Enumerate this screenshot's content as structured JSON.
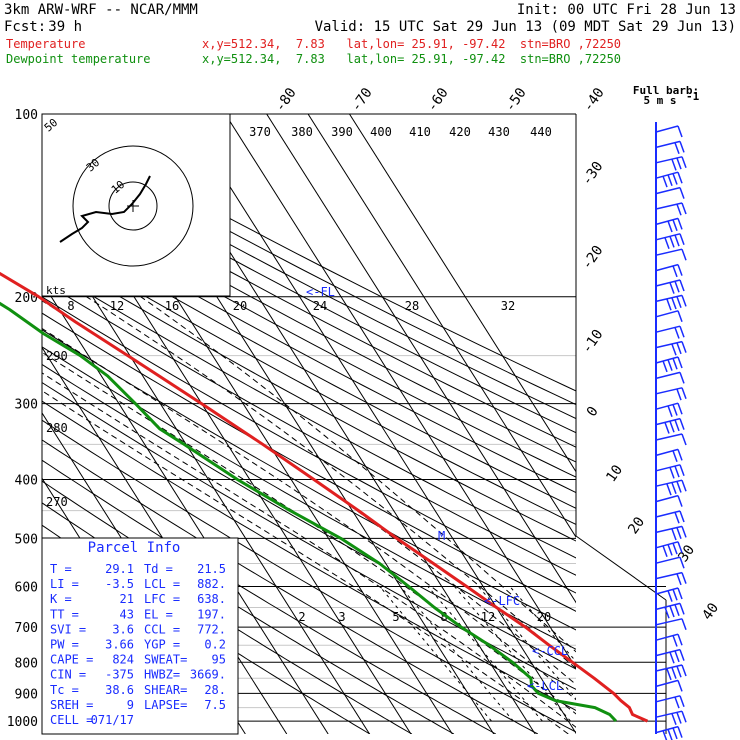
{
  "header": {
    "model": "3km ARW-WRF -- NCAR/MMM",
    "init": "Init: 00 UTC Fri 28 Jun 13",
    "fcst_label": "Fcst:",
    "fcst_value": "39 h",
    "valid": "Valid: 15 UTC Sat 29 Jun 13 (09 MDT Sat 29 Jun 13)",
    "temp_line": {
      "name": "Temperature",
      "info": "x,y=512.34,  7.83   lat,lon= 25.91, -97.42  stn=BRO ,72250"
    },
    "dew_line": {
      "name": "Dewpoint temperature",
      "info": "x,y=512.34,  7.83   lat,lon= 25.91, -97.42  stn=BRO ,72250"
    }
  },
  "barb_title": "Full barb:",
  "barb_unit": "5 m s",
  "barb_exp": "-1",
  "hodo_unit": "kts",
  "hodo_ring_labels": [
    "50",
    "30",
    "10"
  ],
  "labels": {
    "lfc": "<-LFC",
    "ccl": "<-CCL",
    "lcl": "<-LCL",
    "fl": "<-FL",
    "m": "M"
  },
  "mixing_ratio_labels": [
    "2",
    "3",
    "5",
    "8",
    "12",
    "20"
  ],
  "theta_e_labels": [
    "370",
    "380",
    "390",
    "400",
    "410",
    "420",
    "430",
    "440"
  ],
  "theta_e_lower_labels": [
    "8",
    "12",
    "16",
    "20",
    "24",
    "28",
    "32"
  ],
  "dry_adiabat_labels": [
    "290",
    "280",
    "270"
  ],
  "parcel": {
    "title": "Parcel Info",
    "rows": [
      [
        "T  =",
        "29.1",
        "Td  =",
        "21.5"
      ],
      [
        "LI =",
        "-3.5",
        "LCL =",
        "882."
      ],
      [
        "K  =",
        "21",
        "LFC =",
        "638."
      ],
      [
        "TT =",
        "43",
        "EL  =",
        "197."
      ],
      [
        "SVI =",
        "3.6",
        "CCL =",
        "772."
      ],
      [
        "PW =",
        "3.66",
        "YGP =",
        "0.2"
      ],
      [
        "CAPE =",
        "824",
        "SWEAT=",
        "95"
      ],
      [
        "CIN =",
        "-375",
        "HWBZ=",
        "3669."
      ],
      [
        "Tc =",
        "38.6",
        "SHEAR=",
        "28."
      ],
      [
        "SREH =",
        "9",
        "LAPSE=",
        "7.5"
      ],
      [
        "CELL =",
        "071/17",
        "",
        ""
      ]
    ]
  },
  "chart_data": {
    "type": "skew-t",
    "y_axis": "pressure (hPa, log scale)",
    "pressure_ticks": [
      100,
      200,
      300,
      400,
      500,
      600,
      700,
      800,
      900,
      1000
    ],
    "isotherm_labels_top": [
      -80,
      -70,
      -60,
      -50,
      -40
    ],
    "isotherm_labels_right": [
      -30,
      -20,
      -10,
      0,
      10,
      20,
      30,
      40
    ],
    "isotherm_values": [
      -110,
      -100,
      -90,
      -80,
      -70,
      -60,
      -50,
      -40,
      -30,
      -20,
      -10,
      0,
      10,
      20,
      30,
      40,
      50
    ],
    "mixing_ratio_values": [
      2,
      3,
      5,
      8,
      12,
      20
    ],
    "temperature": {
      "name": "Temperature",
      "color": "#e02020",
      "points": [
        [
          1000,
          29.1
        ],
        [
          975,
          26.5
        ],
        [
          950,
          26.8
        ],
        [
          925,
          25.8
        ],
        [
          900,
          25.2
        ],
        [
          850,
          22.8
        ],
        [
          800,
          20.0
        ],
        [
          750,
          17.0
        ],
        [
          700,
          14.0
        ],
        [
          650,
          10.0
        ],
        [
          600,
          6.0
        ],
        [
          550,
          1.5
        ],
        [
          500,
          -3.5
        ],
        [
          450,
          -8.5
        ],
        [
          400,
          -14.5
        ],
        [
          350,
          -21.5
        ],
        [
          300,
          -30.0
        ],
        [
          250,
          -40.5
        ],
        [
          220,
          -48.0
        ],
        [
          200,
          -53.0
        ],
        [
          180,
          -60.0
        ],
        [
          160,
          -67.0
        ],
        [
          140,
          -72.0
        ],
        [
          120,
          -75.0
        ],
        [
          110,
          -76.0
        ],
        [
          100,
          -76.5
        ]
      ]
    },
    "dewpoint": {
      "name": "Dewpoint temperature",
      "color": "#109010",
      "points": [
        [
          1000,
          21.5
        ],
        [
          975,
          21.0
        ],
        [
          950,
          18.5
        ],
        [
          925,
          10.0
        ],
        [
          900,
          7.0
        ],
        [
          875,
          6.5
        ],
        [
          850,
          7.5
        ],
        [
          800,
          5.5
        ],
        [
          750,
          2.5
        ],
        [
          700,
          -1.5
        ],
        [
          650,
          -5.0
        ],
        [
          600,
          -8.0
        ],
        [
          550,
          -11.5
        ],
        [
          500,
          -17.0
        ],
        [
          450,
          -25.0
        ],
        [
          400,
          -33.0
        ],
        [
          350,
          -40.5
        ],
        [
          330,
          -44.0
        ],
        [
          300,
          -46.0
        ],
        [
          270,
          -48.5
        ],
        [
          250,
          -52.0
        ],
        [
          230,
          -57.5
        ],
        [
          210,
          -62.0
        ],
        [
          200,
          -65.0
        ],
        [
          180,
          -74.0
        ],
        [
          160,
          -82.0
        ],
        [
          140,
          -87.0
        ],
        [
          120,
          -87.5
        ],
        [
          110,
          -86.0
        ],
        [
          100,
          -85.0
        ]
      ]
    }
  }
}
